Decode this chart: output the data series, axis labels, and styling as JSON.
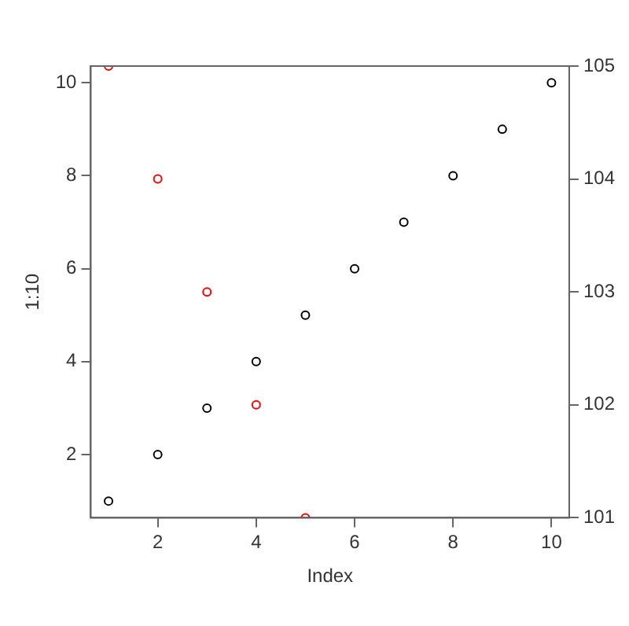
{
  "chart_data": {
    "type": "scatter",
    "xlabel": "Index",
    "ylabel": "1:10",
    "marker": "circle",
    "grid": false,
    "legend": false,
    "xlim": [
      0.64,
      10.36
    ],
    "xticks": [
      2,
      4,
      6,
      8,
      10
    ],
    "ylim": [
      0.64,
      10.36
    ],
    "yticks": [
      2,
      4,
      6,
      8,
      10
    ],
    "y2lim": [
      101,
      105
    ],
    "y2ticks": [
      101,
      102,
      103,
      104,
      105
    ],
    "series": [
      {
        "color": "#000000",
        "x": [
          1,
          2,
          3,
          4,
          5,
          6,
          7,
          8,
          9,
          10
        ],
        "values": [
          1,
          2,
          3,
          4,
          5,
          6,
          7,
          8,
          9,
          10
        ]
      },
      {
        "color": "#ff0000",
        "axis": "y2",
        "x": [
          1,
          2,
          3,
          4,
          5
        ],
        "values": [
          105,
          104,
          103,
          102,
          101
        ]
      }
    ]
  }
}
